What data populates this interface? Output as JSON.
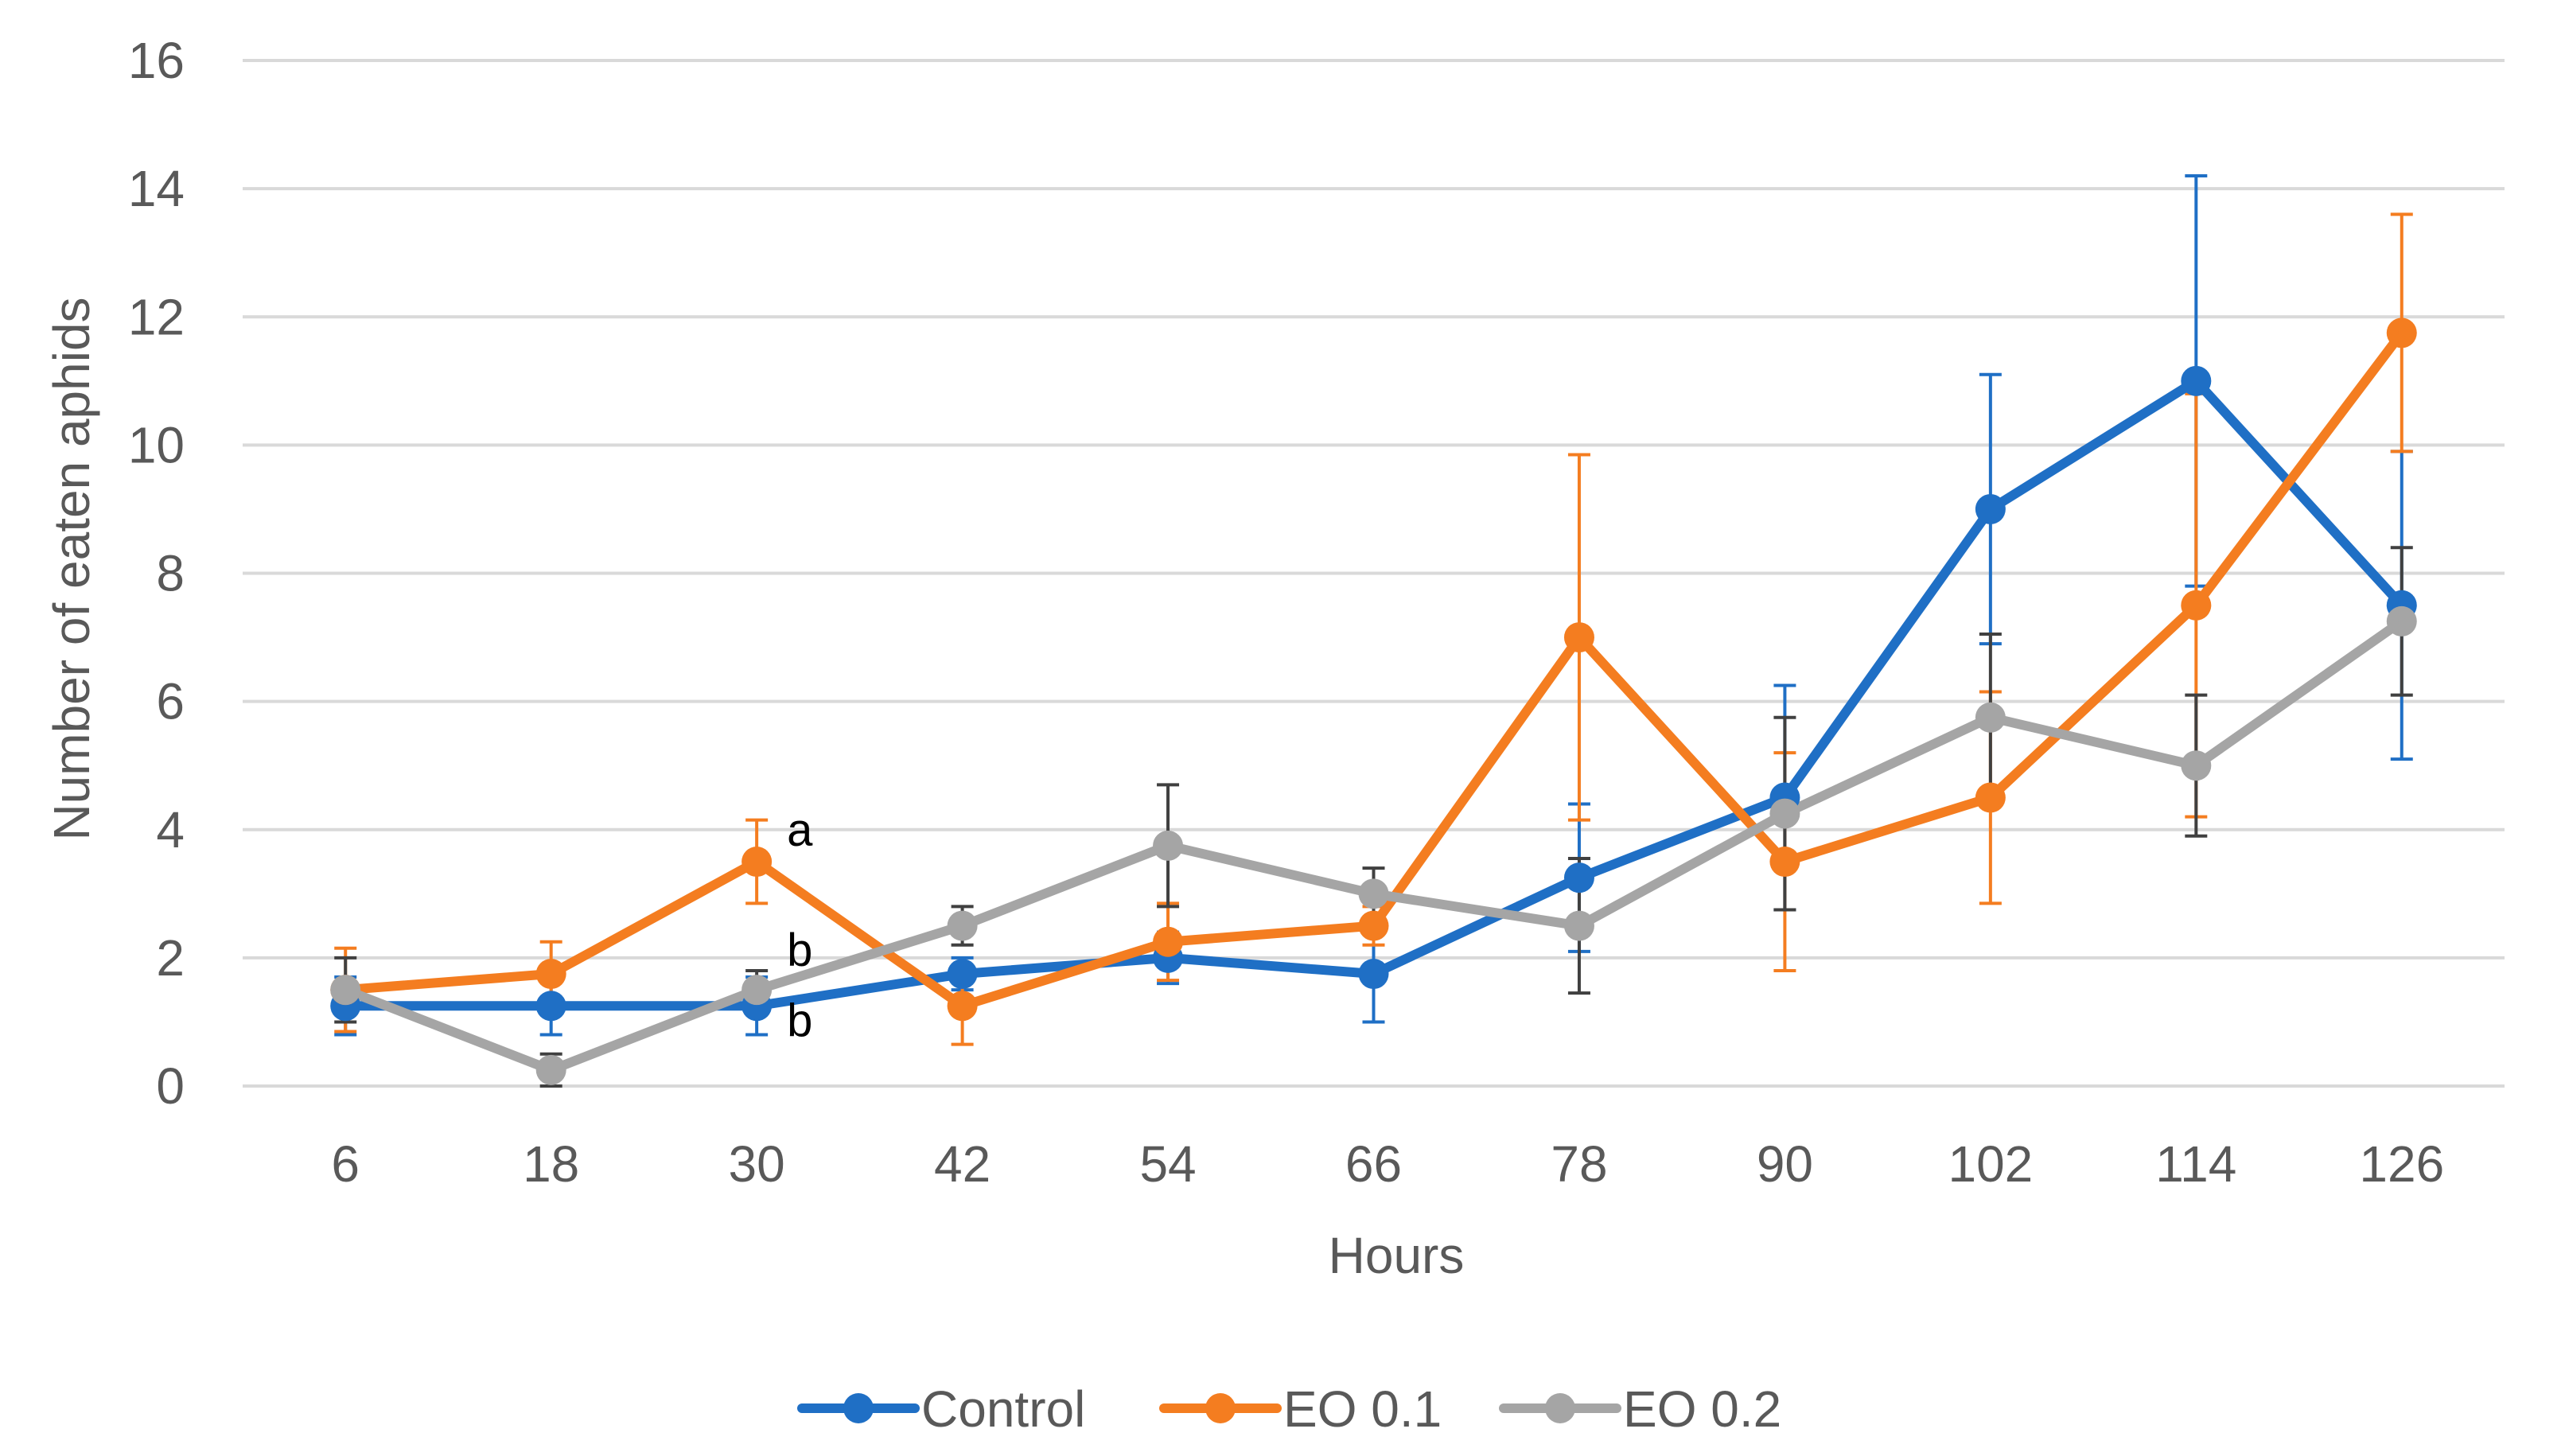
{
  "chart_data": {
    "type": "line",
    "title": "",
    "xlabel": "Hours",
    "ylabel": "Number of eaten aphids",
    "categories": [
      "6",
      "18",
      "30",
      "42",
      "54",
      "66",
      "78",
      "90",
      "102",
      "114",
      "126"
    ],
    "ylim": [
      0,
      16
    ],
    "yticks": [
      "0",
      "2",
      "4",
      "6",
      "8",
      "10",
      "12",
      "14",
      "16"
    ],
    "grid": true,
    "legend_position": "bottom",
    "series": [
      {
        "name": "Control",
        "color": "#1F6FC5",
        "values": [
          1.25,
          1.25,
          1.25,
          1.75,
          2.0,
          1.75,
          3.25,
          4.5,
          9.0,
          11.0,
          7.5
        ],
        "errors": [
          0.45,
          0.45,
          0.45,
          0.25,
          0.4,
          0.75,
          1.15,
          1.75,
          2.1,
          3.2,
          2.4
        ]
      },
      {
        "name": "EO 0.1",
        "color": "#F47D20",
        "values": [
          1.5,
          1.75,
          3.5,
          1.25,
          2.25,
          2.5,
          7.0,
          3.5,
          4.5,
          7.5,
          11.75
        ],
        "errors": [
          0.65,
          0.5,
          0.65,
          0.6,
          0.6,
          0.3,
          2.85,
          1.7,
          1.65,
          3.3,
          1.85
        ]
      },
      {
        "name": "EO 0.2",
        "color": "#A5A5A5",
        "values": [
          1.5,
          0.25,
          1.5,
          2.5,
          3.75,
          3.0,
          2.5,
          4.25,
          5.75,
          5.0,
          7.25
        ],
        "errors": [
          0.5,
          0.25,
          0.3,
          0.3,
          0.95,
          0.4,
          1.05,
          1.5,
          1.3,
          1.1,
          1.15
        ]
      }
    ],
    "annotations": [
      {
        "text": "a",
        "category": "30",
        "value": 3.5,
        "series": "EO 0.1"
      },
      {
        "text": "b",
        "category": "30",
        "value": 1.5,
        "series": "EO 0.2"
      },
      {
        "text": "b",
        "category": "30",
        "value": 1.25,
        "series": "Control"
      }
    ],
    "gridline_color": "#D9D9D9",
    "errorbar_color_eo02": "#404040"
  }
}
